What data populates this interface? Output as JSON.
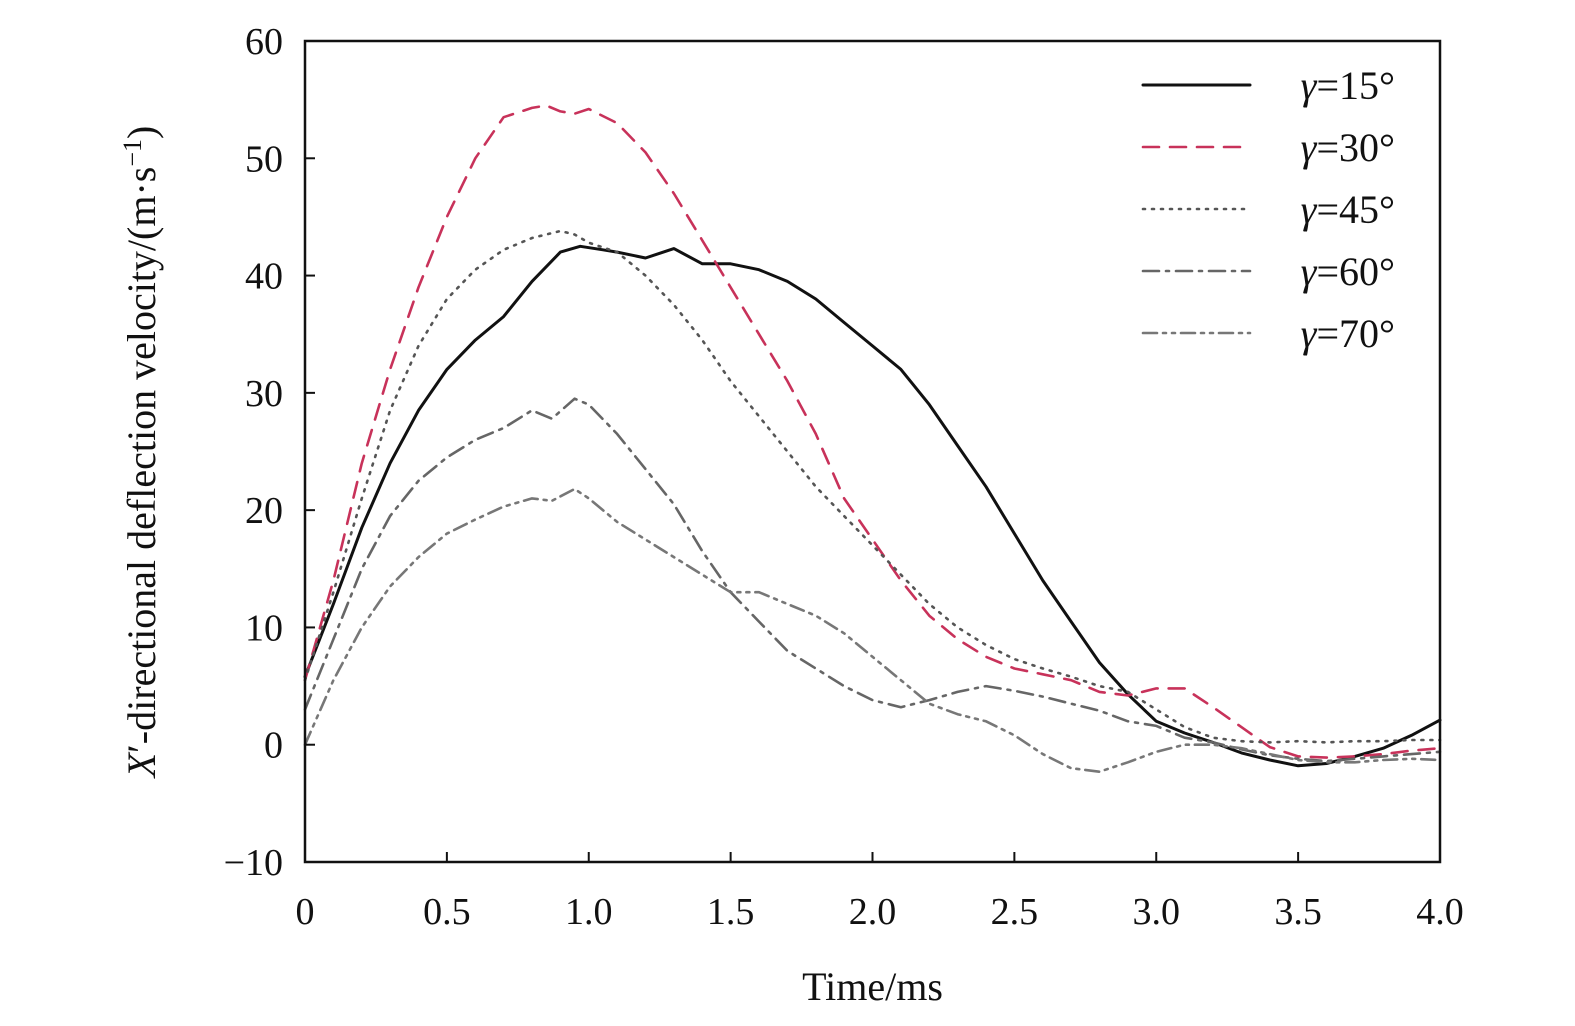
{
  "chart_data": {
    "type": "line",
    "xlabel": "Time/ms",
    "ylabel": {
      "sym": "X",
      "prime": "′",
      "rest": "-directional deflection velocity/(m·s",
      "exp": "−1",
      "close": ")"
    },
    "xlim": [
      0,
      4.0
    ],
    "ylim": [
      -10,
      60
    ],
    "x_ticks": [
      0,
      0.5,
      1.0,
      1.5,
      2.0,
      2.5,
      3.0,
      3.5,
      4.0
    ],
    "x_tick_labels": [
      "0",
      "0.5",
      "1.0",
      "1.5",
      "2.0",
      "2.5",
      "3.0",
      "3.5",
      "4.0"
    ],
    "y_ticks": [
      -10,
      0,
      10,
      20,
      30,
      40,
      50,
      60
    ],
    "y_tick_labels": [
      "−10",
      "0",
      "10",
      "20",
      "30",
      "40",
      "50",
      "60"
    ],
    "grid": false,
    "legend_position": "top-right",
    "series": [
      {
        "name": "γ=15°",
        "color": "#111111",
        "dash": "solid",
        "points": [
          [
            0,
            5.8
          ],
          [
            0.1,
            12
          ],
          [
            0.2,
            18.5
          ],
          [
            0.3,
            24
          ],
          [
            0.4,
            28.5
          ],
          [
            0.5,
            32
          ],
          [
            0.6,
            34.5
          ],
          [
            0.7,
            36.5
          ],
          [
            0.8,
            39.5
          ],
          [
            0.9,
            42
          ],
          [
            0.97,
            42.5
          ],
          [
            1.05,
            42.2
          ],
          [
            1.1,
            42
          ],
          [
            1.2,
            41.5
          ],
          [
            1.3,
            42.3
          ],
          [
            1.4,
            41
          ],
          [
            1.5,
            41
          ],
          [
            1.6,
            40.5
          ],
          [
            1.7,
            39.5
          ],
          [
            1.8,
            38
          ],
          [
            1.9,
            36
          ],
          [
            2.0,
            34
          ],
          [
            2.1,
            32
          ],
          [
            2.2,
            29
          ],
          [
            2.3,
            25.5
          ],
          [
            2.4,
            22
          ],
          [
            2.5,
            18
          ],
          [
            2.6,
            14
          ],
          [
            2.7,
            10.5
          ],
          [
            2.8,
            7
          ],
          [
            2.9,
            4.3
          ],
          [
            3.0,
            2
          ],
          [
            3.1,
            1
          ],
          [
            3.2,
            0.2
          ],
          [
            3.3,
            -0.7
          ],
          [
            3.4,
            -1.3
          ],
          [
            3.5,
            -1.8
          ],
          [
            3.6,
            -1.6
          ],
          [
            3.7,
            -1
          ],
          [
            3.8,
            -0.3
          ],
          [
            3.9,
            0.8
          ],
          [
            4.0,
            2.1
          ]
        ]
      },
      {
        "name": "γ=30°",
        "color": "#c8325a",
        "dash": "dashed",
        "points": [
          [
            0,
            5.5
          ],
          [
            0.1,
            14
          ],
          [
            0.2,
            24
          ],
          [
            0.3,
            32
          ],
          [
            0.4,
            39
          ],
          [
            0.5,
            45
          ],
          [
            0.6,
            50
          ],
          [
            0.7,
            53.5
          ],
          [
            0.8,
            54.3
          ],
          [
            0.85,
            54.5
          ],
          [
            0.9,
            54
          ],
          [
            0.95,
            53.8
          ],
          [
            1.0,
            54.2
          ],
          [
            1.1,
            53
          ],
          [
            1.2,
            50.5
          ],
          [
            1.3,
            47
          ],
          [
            1.4,
            43
          ],
          [
            1.5,
            39
          ],
          [
            1.6,
            35
          ],
          [
            1.7,
            31
          ],
          [
            1.8,
            26.5
          ],
          [
            1.9,
            21
          ],
          [
            2.0,
            17.5
          ],
          [
            2.1,
            14
          ],
          [
            2.2,
            11
          ],
          [
            2.3,
            9
          ],
          [
            2.4,
            7.5
          ],
          [
            2.5,
            6.5
          ],
          [
            2.6,
            6
          ],
          [
            2.7,
            5.5
          ],
          [
            2.8,
            4.5
          ],
          [
            2.9,
            4.2
          ],
          [
            3.0,
            4.8
          ],
          [
            3.1,
            4.8
          ],
          [
            3.2,
            3.2
          ],
          [
            3.3,
            1.5
          ],
          [
            3.4,
            -0.2
          ],
          [
            3.5,
            -1
          ],
          [
            3.6,
            -1.1
          ],
          [
            3.7,
            -1
          ],
          [
            3.8,
            -0.8
          ],
          [
            3.9,
            -0.5
          ],
          [
            4.0,
            -0.3
          ]
        ]
      },
      {
        "name": "γ=45°",
        "color": "#555555",
        "dash": "dotted",
        "points": [
          [
            0,
            5.5
          ],
          [
            0.1,
            13
          ],
          [
            0.2,
            21
          ],
          [
            0.3,
            28.5
          ],
          [
            0.4,
            34
          ],
          [
            0.5,
            38
          ],
          [
            0.6,
            40.5
          ],
          [
            0.7,
            42.2
          ],
          [
            0.8,
            43.2
          ],
          [
            0.9,
            43.8
          ],
          [
            0.95,
            43.5
          ],
          [
            1.0,
            42.8
          ],
          [
            1.1,
            42
          ],
          [
            1.2,
            40
          ],
          [
            1.3,
            37.5
          ],
          [
            1.4,
            34.5
          ],
          [
            1.5,
            31
          ],
          [
            1.6,
            28
          ],
          [
            1.7,
            25
          ],
          [
            1.8,
            22
          ],
          [
            1.9,
            19.5
          ],
          [
            2.0,
            17
          ],
          [
            2.1,
            14.5
          ],
          [
            2.2,
            12
          ],
          [
            2.3,
            10
          ],
          [
            2.4,
            8.5
          ],
          [
            2.5,
            7.3
          ],
          [
            2.6,
            6.5
          ],
          [
            2.7,
            5.8
          ],
          [
            2.8,
            5
          ],
          [
            2.9,
            4.5
          ],
          [
            3.0,
            3
          ],
          [
            3.1,
            1.5
          ],
          [
            3.2,
            0.6
          ],
          [
            3.3,
            0.3
          ],
          [
            3.4,
            0.2
          ],
          [
            3.5,
            0.3
          ],
          [
            3.6,
            0.2
          ],
          [
            3.7,
            0.3
          ],
          [
            3.8,
            0.3
          ],
          [
            3.9,
            0.4
          ],
          [
            4.0,
            0.4
          ]
        ]
      },
      {
        "name": "γ=60°",
        "color": "#666666",
        "dash": "dashdot",
        "points": [
          [
            0,
            3
          ],
          [
            0.1,
            9
          ],
          [
            0.2,
            15
          ],
          [
            0.3,
            19.5
          ],
          [
            0.4,
            22.5
          ],
          [
            0.5,
            24.5
          ],
          [
            0.6,
            26
          ],
          [
            0.7,
            27
          ],
          [
            0.8,
            28.5
          ],
          [
            0.87,
            27.8
          ],
          [
            0.95,
            29.5
          ],
          [
            1.0,
            29
          ],
          [
            1.1,
            26.5
          ],
          [
            1.2,
            23.5
          ],
          [
            1.3,
            20.5
          ],
          [
            1.4,
            16.5
          ],
          [
            1.5,
            13
          ],
          [
            1.6,
            10.5
          ],
          [
            1.7,
            8
          ],
          [
            1.8,
            6.5
          ],
          [
            1.9,
            5
          ],
          [
            2.0,
            3.8
          ],
          [
            2.1,
            3.2
          ],
          [
            2.2,
            3.8
          ],
          [
            2.3,
            4.5
          ],
          [
            2.4,
            5
          ],
          [
            2.5,
            4.6
          ],
          [
            2.6,
            4.1
          ],
          [
            2.7,
            3.5
          ],
          [
            2.8,
            2.9
          ],
          [
            2.9,
            2
          ],
          [
            3.0,
            1.6
          ],
          [
            3.1,
            0.6
          ],
          [
            3.2,
            0.2
          ],
          [
            3.3,
            -0.4
          ],
          [
            3.4,
            -0.9
          ],
          [
            3.5,
            -1.2
          ],
          [
            3.6,
            -1.4
          ],
          [
            3.7,
            -1.2
          ],
          [
            3.8,
            -1
          ],
          [
            3.9,
            -0.8
          ],
          [
            4.0,
            -0.6
          ]
        ]
      },
      {
        "name": "γ=70°",
        "color": "#777777",
        "dash": "dashdotdot",
        "points": [
          [
            0,
            0
          ],
          [
            0.1,
            5.5
          ],
          [
            0.2,
            10
          ],
          [
            0.3,
            13.5
          ],
          [
            0.4,
            16
          ],
          [
            0.5,
            18
          ],
          [
            0.6,
            19.2
          ],
          [
            0.7,
            20.3
          ],
          [
            0.8,
            21
          ],
          [
            0.87,
            20.8
          ],
          [
            0.95,
            21.8
          ],
          [
            1.0,
            21
          ],
          [
            1.1,
            19
          ],
          [
            1.2,
            17.5
          ],
          [
            1.3,
            16
          ],
          [
            1.4,
            14.5
          ],
          [
            1.5,
            13
          ],
          [
            1.6,
            13
          ],
          [
            1.7,
            12
          ],
          [
            1.8,
            11
          ],
          [
            1.9,
            9.5
          ],
          [
            2.0,
            7.5
          ],
          [
            2.1,
            5.5
          ],
          [
            2.2,
            3.5
          ],
          [
            2.3,
            2.6
          ],
          [
            2.4,
            2
          ],
          [
            2.5,
            0.8
          ],
          [
            2.6,
            -0.8
          ],
          [
            2.7,
            -2
          ],
          [
            2.8,
            -2.3
          ],
          [
            2.9,
            -1.5
          ],
          [
            3.0,
            -0.6
          ],
          [
            3.1,
            0
          ],
          [
            3.2,
            0
          ],
          [
            3.3,
            -0.3
          ],
          [
            3.4,
            -0.8
          ],
          [
            3.5,
            -1.3
          ],
          [
            3.6,
            -1.5
          ],
          [
            3.7,
            -1.5
          ],
          [
            3.8,
            -1.3
          ],
          [
            3.9,
            -1.2
          ],
          [
            4.0,
            -1.3
          ]
        ]
      }
    ]
  }
}
